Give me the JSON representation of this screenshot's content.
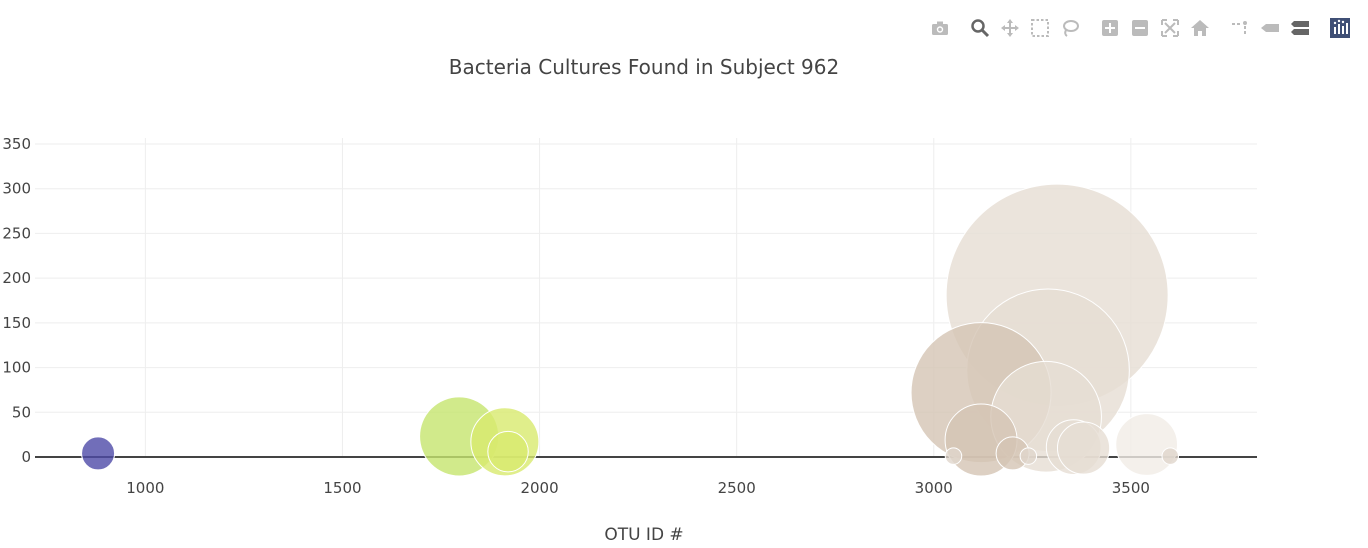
{
  "modebar": {
    "buttons": [
      "camera-icon",
      "zoom-icon",
      "pan-icon",
      "box-select-icon",
      "lasso-icon",
      "zoom-in-icon",
      "zoom-out-icon",
      "autoscale-icon",
      "reset-axes-icon",
      "spike-lines-icon",
      "hover-closest-icon",
      "hover-compare-icon",
      "plotly-logo-icon"
    ],
    "colors": {
      "icon": "#bbbbbb",
      "active": "#666666",
      "logo": "#3f4f75"
    }
  },
  "chart_data": {
    "type": "scatter",
    "title": "Bacteria Cultures Found in Subject 962",
    "xlabel": "OTU ID #",
    "ylabel": "",
    "xlim": [
      720,
      3820
    ],
    "ylim": [
      0,
      350
    ],
    "xticks": [
      1000,
      1500,
      2000,
      2500,
      3000,
      3500
    ],
    "yticks": [
      0,
      50,
      100,
      150,
      200,
      250,
      300,
      350
    ],
    "grid": true,
    "series": [
      {
        "points": [
          {
            "x": 3313,
            "y": 181,
            "color": "#e6ddd3"
          },
          {
            "x": 3290,
            "y": 97,
            "color": "#e6ddd3"
          },
          {
            "x": 3120,
            "y": 72,
            "color": "#d5c4b4"
          },
          {
            "x": 3285,
            "y": 45,
            "color": "#e6ddd3"
          },
          {
            "x": 3120,
            "y": 19,
            "color": "#d5c4b4"
          },
          {
            "x": 3355,
            "y": 11,
            "color": "#e6ddd3"
          },
          {
            "x": 3380,
            "y": 10,
            "color": "#e6ddd3"
          },
          {
            "x": 3540,
            "y": 14,
            "color": "#f1ece6"
          },
          {
            "x": 1796,
            "y": 23,
            "color": "#c5e56e"
          },
          {
            "x": 1912,
            "y": 17,
            "color": "#d8ea6e"
          },
          {
            "x": 1920,
            "y": 6,
            "color": "#d8ea6e"
          },
          {
            "x": 3200,
            "y": 4,
            "color": "#d5c4b4"
          },
          {
            "x": 880,
            "y": 4,
            "color": "#4e4aa8"
          },
          {
            "x": 3050,
            "y": 1,
            "color": "#e0d6cc"
          },
          {
            "x": 3240,
            "y": 1,
            "color": "#e0d6cc"
          },
          {
            "x": 3600,
            "y": 1,
            "color": "#e0d6cc"
          }
        ]
      }
    ]
  }
}
